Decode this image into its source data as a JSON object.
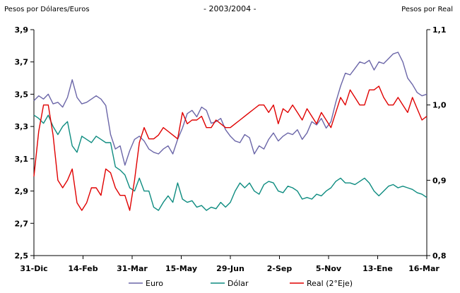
{
  "chart_data": {
    "type": "line",
    "title": "",
    "subtitle": "- 2003/2004 -",
    "ylabel_left": "Pesos por Dólares/Euros",
    "ylabel_right": "Pesos por Real",
    "x_tick_labels": [
      "31-Dic",
      "14-Feb",
      "31-Mar",
      "15-May",
      "29-Jun",
      "2-Sep",
      "5-Nov",
      "13-Ene",
      "16-Mar"
    ],
    "y_left": {
      "min": 2.5,
      "max": 3.9,
      "step": 0.2,
      "labels": [
        "2,5",
        "2,7",
        "2,9",
        "3,1",
        "3,3",
        "3,5",
        "3,7",
        "3,9"
      ]
    },
    "y_right": {
      "min": 0.8,
      "max": 1.1,
      "step": 0.1,
      "labels": [
        "0,8",
        "0,9",
        "1,0",
        "1,1"
      ]
    },
    "grid": false,
    "legend_position": "bottom",
    "series": [
      {
        "name": "Euro",
        "axis": "left",
        "color": "#6B66A8",
        "values": [
          3.46,
          3.49,
          3.47,
          3.5,
          3.44,
          3.45,
          3.42,
          3.48,
          3.59,
          3.48,
          3.44,
          3.45,
          3.47,
          3.49,
          3.47,
          3.43,
          3.25,
          3.16,
          3.18,
          3.06,
          3.15,
          3.22,
          3.24,
          3.21,
          3.16,
          3.14,
          3.13,
          3.16,
          3.18,
          3.13,
          3.22,
          3.29,
          3.38,
          3.4,
          3.36,
          3.42,
          3.4,
          3.32,
          3.33,
          3.35,
          3.28,
          3.24,
          3.21,
          3.2,
          3.25,
          3.23,
          3.13,
          3.18,
          3.16,
          3.22,
          3.26,
          3.21,
          3.24,
          3.26,
          3.25,
          3.28,
          3.22,
          3.26,
          3.33,
          3.31,
          3.35,
          3.29,
          3.33,
          3.45,
          3.55,
          3.63,
          3.62,
          3.66,
          3.7,
          3.69,
          3.71,
          3.65,
          3.7,
          3.69,
          3.72,
          3.75,
          3.76,
          3.7,
          3.6,
          3.56,
          3.51,
          3.49,
          3.5
        ]
      },
      {
        "name": "Dólar",
        "axis": "left",
        "color": "#0E8C80",
        "values": [
          3.37,
          3.35,
          3.32,
          3.37,
          3.3,
          3.25,
          3.3,
          3.33,
          3.18,
          3.14,
          3.24,
          3.22,
          3.2,
          3.24,
          3.22,
          3.2,
          3.2,
          3.05,
          3.03,
          3.0,
          2.92,
          2.9,
          2.98,
          2.9,
          2.9,
          2.8,
          2.78,
          2.83,
          2.87,
          2.83,
          2.95,
          2.85,
          2.83,
          2.84,
          2.8,
          2.81,
          2.78,
          2.8,
          2.79,
          2.83,
          2.8,
          2.83,
          2.9,
          2.95,
          2.92,
          2.95,
          2.9,
          2.88,
          2.94,
          2.96,
          2.95,
          2.9,
          2.89,
          2.93,
          2.92,
          2.9,
          2.85,
          2.86,
          2.85,
          2.88,
          2.87,
          2.9,
          2.92,
          2.96,
          2.98,
          2.95,
          2.95,
          2.94,
          2.96,
          2.98,
          2.95,
          2.9,
          2.87,
          2.9,
          2.93,
          2.94,
          2.92,
          2.93,
          2.92,
          2.91,
          2.89,
          2.88,
          2.86
        ]
      },
      {
        "name": "Real (2°Eje)",
        "axis": "right",
        "color": "#E00000",
        "values": [
          0.905,
          0.965,
          1.0,
          1.0,
          0.96,
          0.9,
          0.89,
          0.9,
          0.915,
          0.87,
          0.86,
          0.87,
          0.89,
          0.89,
          0.88,
          0.915,
          0.91,
          0.89,
          0.88,
          0.88,
          0.86,
          0.9,
          0.95,
          0.97,
          0.955,
          0.955,
          0.96,
          0.97,
          0.965,
          0.96,
          0.955,
          0.99,
          0.975,
          0.98,
          0.98,
          0.985,
          0.97,
          0.97,
          0.98,
          0.975,
          0.97,
          0.97,
          0.975,
          0.98,
          0.985,
          0.99,
          0.995,
          1.0,
          1.0,
          0.99,
          1.0,
          0.975,
          0.995,
          0.99,
          1.0,
          0.99,
          0.98,
          0.995,
          0.985,
          0.975,
          0.99,
          0.98,
          0.97,
          0.99,
          1.01,
          1.0,
          1.02,
          1.01,
          1.0,
          1.0,
          1.02,
          1.02,
          1.025,
          1.01,
          1.0,
          1.0,
          1.01,
          1.0,
          0.99,
          1.01,
          0.995,
          0.98,
          0.985
        ]
      }
    ]
  }
}
